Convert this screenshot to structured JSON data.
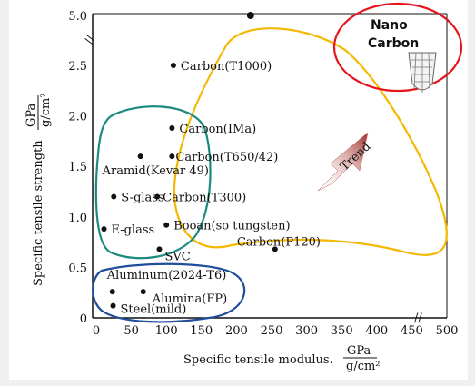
{
  "chart_data": {
    "type": "scatter",
    "xlabel": "Specific tensile modulus.",
    "xunit_num": "GPa",
    "xunit_den": "g/cm²",
    "ylabel": "Specific tensile strength",
    "yunit_num": "GPa",
    "yunit_den": "g/cm²",
    "xlim": [
      0,
      500
    ],
    "ylim": [
      0,
      5.0
    ],
    "x_ticks": [
      0,
      50,
      100,
      150,
      200,
      250,
      300,
      350,
      400,
      450,
      500
    ],
    "x_tick_labels": [
      "0",
      "50",
      "100",
      "150",
      "200",
      "250",
      "300",
      "350",
      "400",
      "450",
      "500"
    ],
    "y_ticks": [
      0,
      0.5,
      1.0,
      1.5,
      2.0,
      2.5,
      5.0
    ],
    "y_tick_labels": [
      "0",
      "0.5",
      "1.0",
      "1.5",
      "2.0",
      "2.5",
      "5.0"
    ],
    "points": [
      {
        "label": "Carbon(T1000)",
        "x": 110,
        "y": 2.5
      },
      {
        "label": "Carbon(IMa)",
        "x": 108,
        "y": 1.88
      },
      {
        "label": "Aramid(Kevar 49)",
        "x": 63,
        "y": 1.6
      },
      {
        "label": "Carbon(T650/42)",
        "x": 108,
        "y": 1.6
      },
      {
        "label": "S-glass",
        "x": 25,
        "y": 1.2
      },
      {
        "label": "Carbon(T300)",
        "x": 87,
        "y": 1.2
      },
      {
        "label": "E-glass",
        "x": 11,
        "y": 0.88
      },
      {
        "label": "Booan(so tungsten)",
        "x": 100,
        "y": 0.92
      },
      {
        "label": "SVC",
        "x": 90,
        "y": 0.68
      },
      {
        "label": "Carbon(P120)",
        "x": 255,
        "y": 0.68
      },
      {
        "label": "Aluminum(2024-T6)",
        "x": 23,
        "y": 0.26
      },
      {
        "label": "Alumina(FP)",
        "x": 67,
        "y": 0.26
      },
      {
        "label": "Steel(mild)",
        "x": 24,
        "y": 0.12
      },
      {
        "label": "Nano Carbon",
        "x": 220,
        "y": 5.0
      }
    ],
    "annotations": {
      "trend_label": "Trend",
      "nano_line1": "Nano",
      "nano_line2": "Carbon",
      "break_mark": "//"
    },
    "colors": {
      "carbon_group": "#f5b800",
      "glass_aramid_group": "#1a8a7e",
      "metal_group": "#1f4e9a",
      "nano_group": "#e8141c",
      "trend_arrow": "#c0504d"
    }
  }
}
